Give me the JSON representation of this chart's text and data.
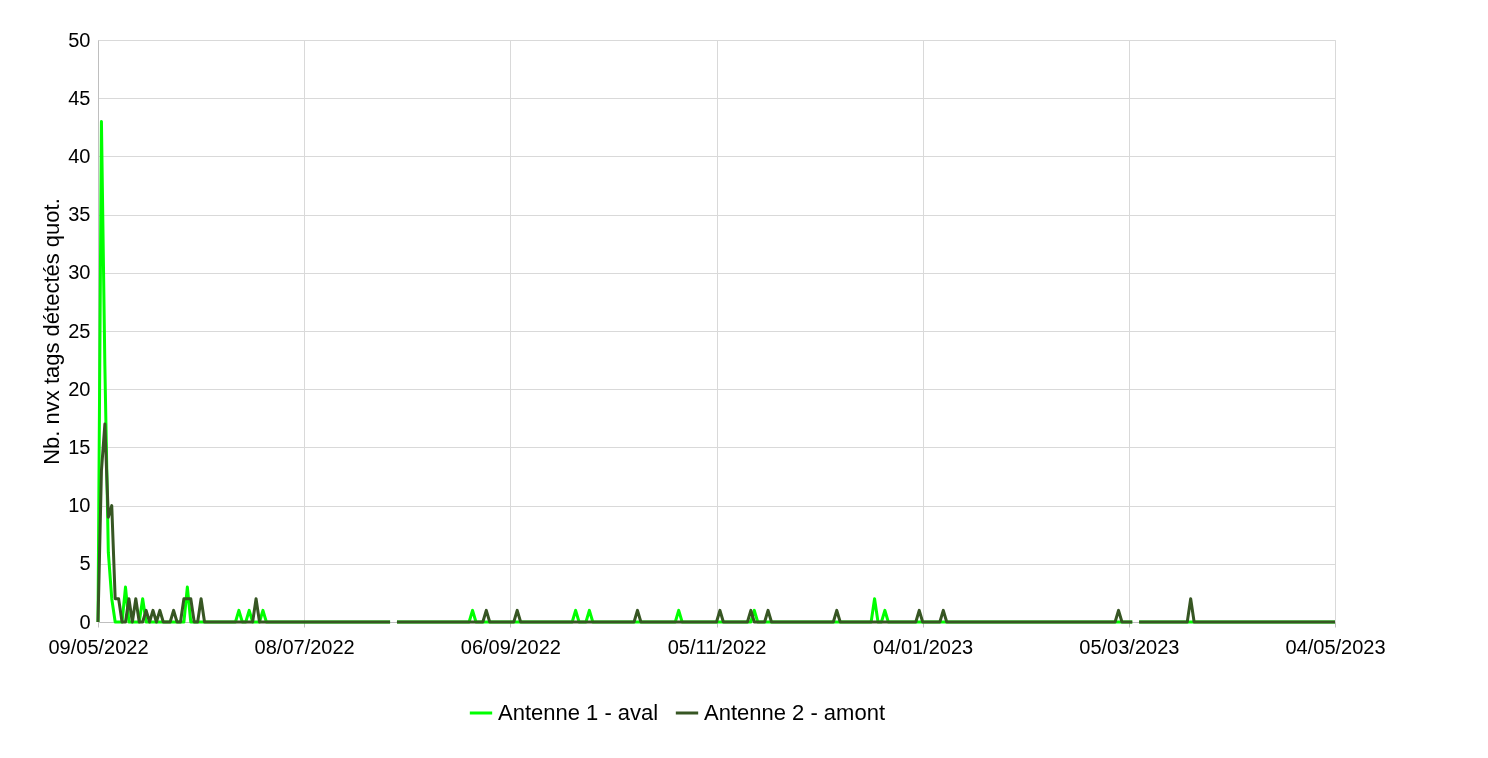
{
  "chart_data": {
    "type": "line",
    "ylabel": "Nb. nvx tags détectés quot.",
    "x": [
      "2022-05-09",
      "2022-05-10",
      "2022-05-11",
      "2022-05-12",
      "2022-05-13",
      "2022-05-14",
      "2022-05-15",
      "2022-05-16",
      "2022-05-17",
      "2022-05-18",
      "2022-05-19",
      "2022-05-20",
      "2022-05-21",
      "2022-05-22",
      "2022-05-23",
      "2022-05-24",
      "2022-05-25",
      "2022-05-26",
      "2022-05-27",
      "2022-05-28",
      "2022-05-29",
      "2022-05-30",
      "2022-05-31",
      "2022-06-01",
      "2022-06-02",
      "2022-06-03",
      "2022-06-04",
      "2022-06-05",
      "2022-06-06",
      "2022-06-07",
      "2022-06-08",
      "2022-06-09",
      "2022-06-18",
      "2022-06-19",
      "2022-06-20",
      "2022-06-21",
      "2022-06-22",
      "2022-06-23",
      "2022-06-24",
      "2022-06-25",
      "2022-06-26",
      "2022-06-27",
      "2022-08-02",
      "2022-08-03",
      "2022-08-04",
      "2022-08-25",
      "2022-08-26",
      "2022-08-27",
      "2022-08-29",
      "2022-08-30",
      "2022-08-31",
      "2022-09-07",
      "2022-09-08",
      "2022-09-09",
      "2022-09-24",
      "2022-09-25",
      "2022-09-26",
      "2022-09-28",
      "2022-09-29",
      "2022-09-30",
      "2022-10-12",
      "2022-10-13",
      "2022-10-14",
      "2022-10-24",
      "2022-10-25",
      "2022-10-26",
      "2022-11-05",
      "2022-11-06",
      "2022-11-07",
      "2022-11-14",
      "2022-11-15",
      "2022-11-16",
      "2022-11-17",
      "2022-11-19",
      "2022-11-20",
      "2022-11-21",
      "2022-12-09",
      "2022-12-10",
      "2022-12-11",
      "2022-12-20",
      "2022-12-21",
      "2022-12-22",
      "2022-12-23",
      "2022-12-24",
      "2022-12-25",
      "2023-01-02",
      "2023-01-03",
      "2023-01-04",
      "2023-01-09",
      "2023-01-10",
      "2023-01-11",
      "2023-03-01",
      "2023-03-02",
      "2023-03-03",
      "2023-03-06",
      "2023-03-07",
      "2023-03-08",
      "2023-03-22",
      "2023-03-23",
      "2023-03-24",
      "2023-05-04"
    ],
    "series": [
      {
        "name": "Antenne 1 - aval",
        "color": "#00ff00",
        "values": [
          0,
          43,
          22,
          6,
          2,
          0,
          0,
          0,
          3,
          0,
          0,
          0,
          0,
          2,
          0,
          0,
          0,
          0,
          0,
          0,
          0,
          0,
          0,
          0,
          0,
          0,
          3,
          0,
          0,
          0,
          0,
          0,
          0,
          1,
          0,
          0,
          1,
          0,
          0,
          0,
          1,
          0,
          0,
          null,
          0,
          0,
          1,
          0,
          0,
          0,
          0,
          0,
          0,
          0,
          0,
          1,
          0,
          0,
          1,
          0,
          0,
          0,
          0,
          0,
          1,
          0,
          0,
          0,
          0,
          0,
          0,
          1,
          0,
          0,
          0,
          0,
          0,
          0,
          0,
          0,
          2,
          0,
          0,
          1,
          0,
          0,
          0,
          0,
          0,
          0,
          0,
          0,
          0,
          0,
          0,
          null,
          0,
          0,
          0,
          0,
          0
        ]
      },
      {
        "name": "Antenne 2 - amont",
        "color": "#375623",
        "values": [
          0,
          13,
          17,
          9,
          10,
          2,
          2,
          0,
          0,
          2,
          0,
          2,
          0,
          0,
          1,
          0,
          1,
          0,
          1,
          0,
          0,
          0,
          1,
          0,
          0,
          2,
          2,
          2,
          0,
          0,
          2,
          0,
          0,
          0,
          0,
          0,
          0,
          0,
          2,
          0,
          0,
          0,
          0,
          null,
          0,
          0,
          0,
          0,
          0,
          1,
          0,
          0,
          1,
          0,
          0,
          0,
          0,
          0,
          0,
          0,
          0,
          1,
          0,
          0,
          0,
          0,
          0,
          1,
          0,
          0,
          1,
          0,
          0,
          0,
          1,
          0,
          0,
          1,
          0,
          0,
          0,
          0,
          0,
          0,
          0,
          0,
          1,
          0,
          0,
          1,
          0,
          0,
          1,
          0,
          0,
          null,
          0,
          0,
          2,
          0,
          0
        ]
      }
    ],
    "xlim": [
      "2022-05-09",
      "2023-05-04"
    ],
    "xticks": [
      {
        "value": "2022-05-09",
        "label": "09/05/2022"
      },
      {
        "value": "2022-07-08",
        "label": "08/07/2022"
      },
      {
        "value": "2022-09-06",
        "label": "06/09/2022"
      },
      {
        "value": "2022-11-05",
        "label": "05/11/2022"
      },
      {
        "value": "2023-01-04",
        "label": "04/01/2023"
      },
      {
        "value": "2023-03-05",
        "label": "05/03/2023"
      },
      {
        "value": "2023-05-04",
        "label": "04/05/2023"
      }
    ],
    "ylim": [
      0,
      50
    ],
    "yticks": [
      0,
      5,
      10,
      15,
      20,
      25,
      30,
      35,
      40,
      45,
      50
    ],
    "grid": true,
    "legend": "bottom",
    "marker": "none",
    "line_style": "solid"
  }
}
